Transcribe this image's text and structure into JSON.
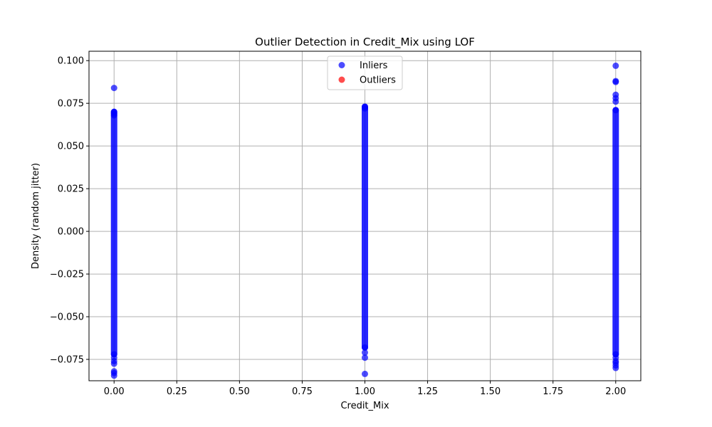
{
  "chart_data": {
    "type": "scatter",
    "title": "Outlier Detection in Credit_Mix using LOF",
    "xlabel": "Credit_Mix",
    "ylabel": "Density (random jitter)",
    "xlim": [
      -0.1,
      2.1
    ],
    "ylim": [
      -0.0875,
      0.1055
    ],
    "xticks": [
      0.0,
      0.25,
      0.5,
      0.75,
      1.0,
      1.25,
      1.5,
      1.75,
      2.0
    ],
    "xtick_labels": [
      "0.00",
      "0.25",
      "0.50",
      "0.75",
      "1.00",
      "1.25",
      "1.50",
      "1.75",
      "2.00"
    ],
    "yticks": [
      -0.075,
      -0.05,
      -0.025,
      0.0,
      0.025,
      0.05,
      0.075,
      0.1
    ],
    "ytick_labels": [
      "−0.075",
      "−0.050",
      "−0.025",
      "0.000",
      "0.025",
      "0.050",
      "0.075",
      "0.100"
    ],
    "grid": true,
    "legend_position": "top-center",
    "series": [
      {
        "name": "Inliers",
        "color": "#0000ff",
        "alpha": 0.7,
        "clusters": [
          {
            "x": 0,
            "ymin": -0.072,
            "ymax": 0.07
          },
          {
            "x": 1,
            "ymin": -0.068,
            "ymax": 0.073
          },
          {
            "x": 2,
            "ymin": -0.072,
            "ymax": 0.071
          }
        ],
        "points": [
          {
            "x": 0,
            "y": 0.084
          },
          {
            "x": 0,
            "y": 0.07
          },
          {
            "x": 0,
            "y": 0.069
          },
          {
            "x": 0,
            "y": 0.068
          },
          {
            "x": 0,
            "y": -0.072
          },
          {
            "x": 0,
            "y": -0.074
          },
          {
            "x": 0,
            "y": -0.076
          },
          {
            "x": 0,
            "y": -0.0775
          },
          {
            "x": 0,
            "y": -0.082
          },
          {
            "x": 0,
            "y": -0.083
          },
          {
            "x": 0,
            "y": -0.0845
          },
          {
            "x": 1,
            "y": 0.073
          },
          {
            "x": 1,
            "y": 0.072
          },
          {
            "x": 1,
            "y": -0.068
          },
          {
            "x": 1,
            "y": -0.071
          },
          {
            "x": 1,
            "y": -0.074
          },
          {
            "x": 1,
            "y": -0.0835
          },
          {
            "x": 2,
            "y": 0.097
          },
          {
            "x": 2,
            "y": 0.088
          },
          {
            "x": 2,
            "y": 0.0875
          },
          {
            "x": 2,
            "y": 0.08
          },
          {
            "x": 2,
            "y": 0.078
          },
          {
            "x": 2,
            "y": 0.076
          },
          {
            "x": 2,
            "y": 0.071
          },
          {
            "x": 2,
            "y": -0.072
          },
          {
            "x": 2,
            "y": -0.074
          },
          {
            "x": 2,
            "y": -0.076
          },
          {
            "x": 2,
            "y": -0.077
          },
          {
            "x": 2,
            "y": -0.0785
          },
          {
            "x": 2,
            "y": -0.08
          }
        ]
      },
      {
        "name": "Outliers",
        "color": "#ff0000",
        "alpha": 0.7,
        "clusters": [],
        "points": []
      }
    ]
  }
}
